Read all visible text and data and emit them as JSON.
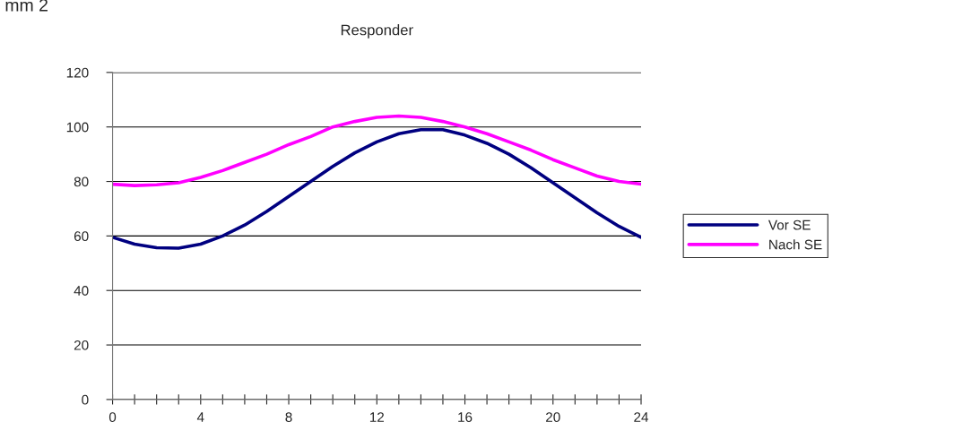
{
  "chart_data": {
    "type": "line",
    "title": "Responder",
    "annotations": [
      "mm 2"
    ],
    "x": [
      0,
      1,
      2,
      3,
      4,
      5,
      6,
      7,
      8,
      9,
      10,
      11,
      12,
      13,
      14,
      15,
      16,
      17,
      18,
      19,
      20,
      21,
      22,
      23,
      24
    ],
    "series": [
      {
        "name": "Vor SE",
        "color": "#000080",
        "values": [
          59.5,
          57,
          55.7,
          55.5,
          57,
          60,
          64,
          69,
          74.5,
          80,
          85.5,
          90.5,
          94.5,
          97.5,
          99,
          99,
          97,
          94,
          90,
          85,
          79.5,
          74,
          68.5,
          63.5,
          59.5
        ]
      },
      {
        "name": "Nach SE",
        "color": "#ff00ff",
        "values": [
          79,
          78.5,
          78.8,
          79.5,
          81.5,
          84,
          87,
          90,
          93.5,
          96.5,
          100,
          102,
          103.5,
          104,
          103.5,
          102,
          100,
          97.5,
          94.5,
          91.5,
          88,
          85,
          82,
          80,
          79
        ]
      }
    ],
    "xlim": [
      0,
      24
    ],
    "xticks": [
      0,
      {
        "value": 1,
        "label": null
      },
      {
        "value": 2,
        "label": null
      },
      {
        "value": 3,
        "label": null
      },
      4,
      {
        "value": 5,
        "label": null
      },
      {
        "value": 6,
        "label": null
      },
      {
        "value": 7,
        "label": null
      },
      8,
      {
        "value": 9,
        "label": null
      },
      {
        "value": 10,
        "label": null
      },
      {
        "value": 11,
        "label": null
      },
      12,
      {
        "value": 13,
        "label": null
      },
      {
        "value": 14,
        "label": null
      },
      {
        "value": 15,
        "label": null
      },
      16,
      {
        "value": 17,
        "label": null
      },
      {
        "value": 18,
        "label": null
      },
      {
        "value": 19,
        "label": null
      },
      20,
      {
        "value": 21,
        "label": null
      },
      {
        "value": 22,
        "label": null
      },
      {
        "value": 23,
        "label": null
      },
      24
    ],
    "ylim": [
      0,
      120
    ],
    "yticks": [
      0,
      20,
      40,
      60,
      80,
      100,
      120
    ],
    "grid": "y",
    "legend": "right",
    "marker": "none",
    "line_style": "solid"
  }
}
